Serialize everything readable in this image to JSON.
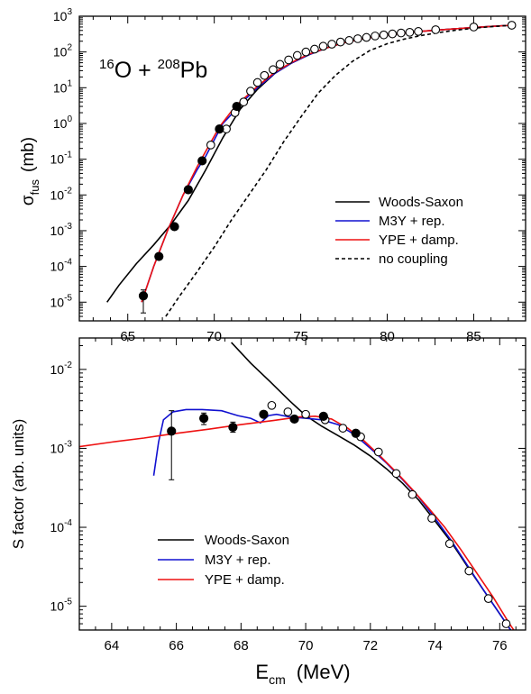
{
  "chart_data": [
    {
      "type": "line",
      "title": "",
      "reaction": {
        "proj_mass": "16",
        "proj_symbol": "O",
        "plus": " + ",
        "targ_mass": "208",
        "targ_symbol": "Pb"
      },
      "ylabel": {
        "main": "σ",
        "sub": "fus",
        "unit": "(mb)"
      },
      "xlim": [
        62.2,
        88
      ],
      "ylim": [
        3e-06,
        1000
      ],
      "yscale": "log",
      "x_ticks": [
        65,
        70,
        75,
        80,
        85
      ],
      "y_ticks": [
        {
          "value": 1e-05,
          "mant": "10",
          "exp": "-5"
        },
        {
          "value": 0.0001,
          "mant": "10",
          "exp": "-4"
        },
        {
          "value": 0.001,
          "mant": "10",
          "exp": "-3"
        },
        {
          "value": 0.01,
          "mant": "10",
          "exp": "-2"
        },
        {
          "value": 0.1,
          "mant": "10",
          "exp": "-1"
        },
        {
          "value": 1,
          "mant": "10",
          "exp": "0"
        },
        {
          "value": 10,
          "mant": "10",
          "exp": "1"
        },
        {
          "value": 100,
          "mant": "10",
          "exp": "2"
        },
        {
          "value": 1000,
          "mant": "10",
          "exp": "3"
        }
      ],
      "legend_position": "right-middle",
      "series": [
        {
          "name": "Woods-Saxon",
          "color": "#000000",
          "dash": "",
          "x": [
            63.8,
            64.5,
            65.5,
            66.5,
            67.5,
            68.5,
            69.5,
            70.5,
            71.5,
            72.5,
            73.5,
            74.5,
            75.5,
            76.5,
            77.5,
            78.5,
            80,
            82,
            84,
            86,
            87.2
          ],
          "y": [
            1e-05,
            3e-05,
            0.00012,
            0.0004,
            0.0015,
            0.007,
            0.05,
            0.4,
            2.5,
            9,
            25,
            50,
            85,
            130,
            180,
            230,
            300,
            380,
            450,
            520,
            560
          ]
        },
        {
          "name": "M3Y + rep.",
          "color": "#1010d0",
          "dash": "",
          "x": [
            65.8,
            66.5,
            67.3,
            68.2,
            69,
            69.5,
            70,
            70.5,
            71,
            71.5,
            72.5,
            73.5,
            74.5,
            75.5,
            76.5,
            77.5,
            78.5,
            80,
            82,
            84,
            86,
            87.2
          ],
          "y": [
            1e-05,
            0.0001,
            0.001,
            0.01,
            0.05,
            0.12,
            0.35,
            1,
            1.8,
            3.5,
            10,
            25,
            50,
            85,
            130,
            180,
            230,
            300,
            380,
            450,
            520,
            560
          ]
        },
        {
          "name": "YPE + damp.",
          "color": "#ee1111",
          "dash": "",
          "x": [
            65.8,
            66.5,
            67.3,
            68.2,
            69,
            69.6,
            70.3,
            71,
            71.5,
            72.5,
            73.5,
            74.5,
            75.5,
            76.5,
            77.5,
            78.5,
            80,
            82,
            84,
            86,
            87.2
          ],
          "y": [
            1e-05,
            0.0001,
            0.001,
            0.01,
            0.06,
            0.2,
            0.8,
            2.2,
            4,
            11,
            27,
            52,
            88,
            130,
            180,
            230,
            300,
            380,
            450,
            520,
            560
          ]
        },
        {
          "name": "no coupling",
          "color": "#000000",
          "dash": "4,3",
          "x": [
            67.2,
            68,
            69,
            70,
            71,
            72,
            73,
            74,
            75,
            76,
            77,
            78,
            79,
            80,
            81,
            82,
            83,
            84,
            85,
            86,
            87.2
          ],
          "y": [
            4e-06,
            1.5e-05,
            7e-05,
            0.00035,
            0.002,
            0.01,
            0.05,
            0.3,
            1.5,
            7,
            22,
            55,
            110,
            170,
            230,
            290,
            350,
            410,
            460,
            510,
            560
          ]
        }
      ],
      "points_filled": {
        "x": [
          65.9,
          66.8,
          67.7,
          68.5,
          69.3,
          70.3,
          71.3
        ],
        "y": [
          1.5e-05,
          0.00019,
          0.0013,
          0.014,
          0.09,
          0.7,
          3
        ],
        "err_low": [
          5e-06,
          null,
          null,
          null,
          null,
          null,
          null
        ],
        "err_high": [
          2.2e-05,
          null,
          null,
          null,
          null,
          null,
          null
        ]
      },
      "points_open": {
        "x": [
          69.8,
          70.7,
          71.2,
          71.7,
          72.1,
          72.5,
          72.9,
          73.4,
          73.8,
          74.3,
          74.8,
          75.3,
          75.8,
          76.3,
          76.8,
          77.3,
          77.8,
          78.3,
          78.8,
          79.3,
          79.8,
          80.3,
          80.8,
          81.3,
          81.8,
          82.8,
          85,
          87.2
        ],
        "y": [
          0.25,
          0.7,
          2,
          4,
          8,
          14,
          22,
          32,
          45,
          60,
          80,
          100,
          120,
          145,
          165,
          190,
          210,
          235,
          255,
          280,
          300,
          320,
          340,
          355,
          375,
          420,
          500,
          560
        ]
      }
    },
    {
      "type": "line",
      "title": "",
      "xlabel": {
        "main": "E",
        "sub": "cm",
        "unit": "(MeV)"
      },
      "ylabel": "S factor (arb. units)",
      "xlim": [
        63,
        76.8
      ],
      "ylim": [
        5e-06,
        0.025
      ],
      "yscale": "log",
      "x_ticks": [
        64,
        66,
        68,
        70,
        72,
        74,
        76
      ],
      "y_ticks": [
        {
          "value": 1e-05,
          "mant": "10",
          "exp": "-5"
        },
        {
          "value": 0.0001,
          "mant": "10",
          "exp": "-4"
        },
        {
          "value": 0.001,
          "mant": "10",
          "exp": "-3"
        },
        {
          "value": 0.01,
          "mant": "10",
          "exp": "-2"
        }
      ],
      "legend_position": "lower-left",
      "series": [
        {
          "name": "Woods-Saxon",
          "color": "#000000",
          "dash": "",
          "x": [
            67.7,
            68.3,
            68.9,
            69.5,
            70,
            70.5,
            71,
            71.5,
            72,
            72.5,
            73,
            73.5,
            74,
            74.5,
            75,
            75.5,
            76,
            76.5
          ],
          "y": [
            0.022,
            0.012,
            0.007,
            0.004,
            0.0026,
            0.0019,
            0.00145,
            0.0011,
            0.0008,
            0.00055,
            0.00036,
            0.00022,
            0.00012,
            6.5e-05,
            3.2e-05,
            1.6e-05,
            8e-06,
            4e-06
          ]
        },
        {
          "name": "M3Y + rep.",
          "color": "#1010d0",
          "dash": "",
          "x": [
            65.3,
            65.45,
            65.6,
            65.9,
            66.3,
            66.8,
            67.4,
            67.9,
            68.3,
            68.6,
            68.85,
            69.1,
            69.5,
            70,
            70.5,
            71,
            71.5,
            72,
            72.5,
            73,
            73.5,
            74,
            74.5,
            75,
            75.5,
            76,
            76.5
          ],
          "y": [
            0.00045,
            0.0012,
            0.0023,
            0.0029,
            0.0031,
            0.0031,
            0.003,
            0.0026,
            0.0024,
            0.0021,
            0.0026,
            0.0027,
            0.0025,
            0.0024,
            0.0023,
            0.002,
            0.0015,
            0.001,
            0.00065,
            0.0004,
            0.00024,
            0.00013,
            6.8e-05,
            3.3e-05,
            1.6e-05,
            8e-06,
            4e-06
          ]
        },
        {
          "name": "YPE + damp.",
          "color": "#ee1111",
          "dash": "",
          "x": [
            63,
            64,
            65,
            65.5,
            66,
            67,
            68,
            69,
            69.8,
            70.3,
            70.8,
            71.3,
            71.8,
            72.3,
            72.8,
            73.3,
            73.8,
            74.3,
            74.8,
            75.3,
            75.8,
            76.3,
            76.6
          ],
          "y": [
            0.00105,
            0.0012,
            0.00135,
            0.00145,
            0.00155,
            0.00175,
            0.002,
            0.00225,
            0.0025,
            0.00255,
            0.00235,
            0.0018,
            0.00125,
            0.0008,
            0.0005,
            0.0003,
            0.000175,
            0.0001,
            5.2e-05,
            2.6e-05,
            1.3e-05,
            6e-06,
            4e-06
          ]
        }
      ],
      "points_filled": {
        "x": [
          65.85,
          66.85,
          67.75,
          68.7,
          69.65,
          70.55,
          71.55
        ],
        "y": [
          0.00165,
          0.0024,
          0.00185,
          0.0027,
          0.00235,
          0.00255,
          0.00155
        ],
        "err_low": [
          0.0004,
          0.002,
          0.0016,
          null,
          null,
          null,
          null
        ],
        "err_high": [
          0.003,
          0.0028,
          0.00215,
          null,
          null,
          null,
          null
        ]
      },
      "points_open": {
        "x": [
          68.95,
          69.45,
          70.0,
          70.6,
          71.15,
          71.7,
          72.25,
          72.8,
          73.3,
          73.9,
          74.45,
          75.05,
          75.65,
          76.2
        ],
        "y": [
          0.0035,
          0.0029,
          0.0027,
          0.0023,
          0.0018,
          0.0014,
          0.0009,
          0.00048,
          0.00026,
          0.00013,
          6.2e-05,
          2.8e-05,
          1.25e-05,
          6e-06
        ]
      }
    }
  ]
}
